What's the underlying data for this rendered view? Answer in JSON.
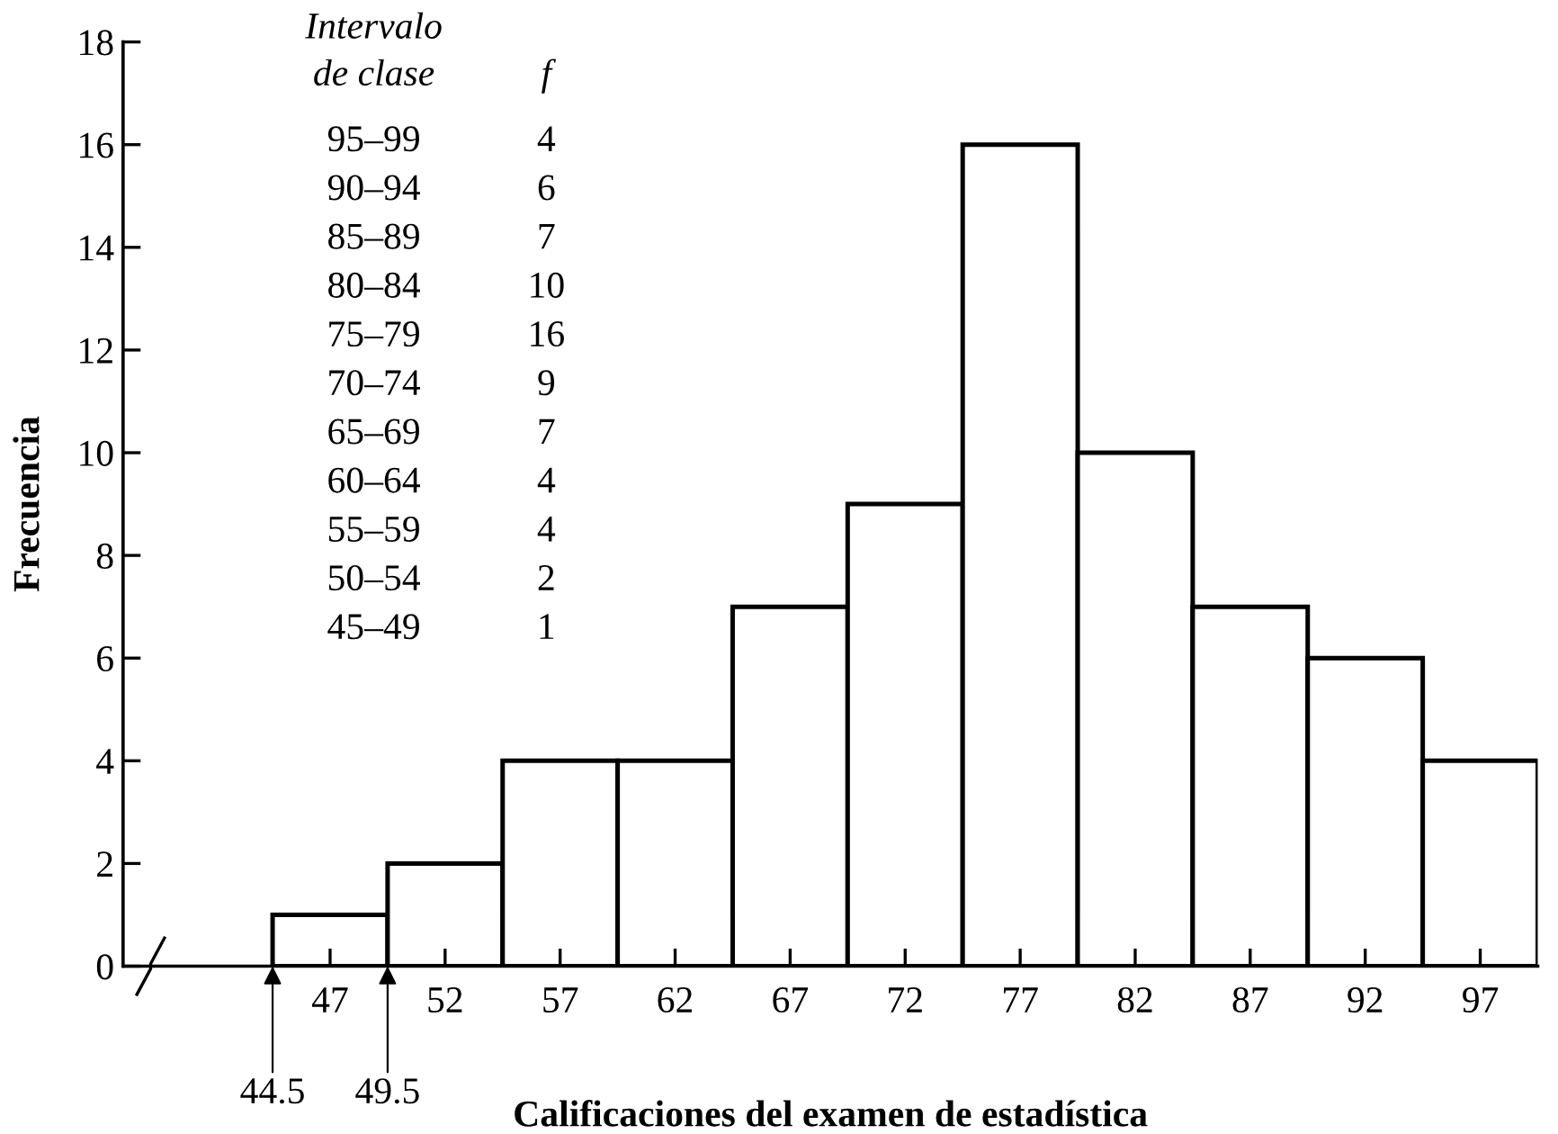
{
  "chart_data": {
    "type": "histogram",
    "xlabel": "Calificaciones del examen de estadística",
    "ylabel": "Frecuencia",
    "bins": [
      44.5,
      49.5,
      54.5,
      59.5,
      64.5,
      69.5,
      74.5,
      79.5,
      84.5,
      89.5,
      94.5,
      99.5
    ],
    "values": [
      1,
      2,
      4,
      4,
      7,
      9,
      16,
      10,
      7,
      6,
      4
    ],
    "color": "#ffffff",
    "xlim": [
      38,
      99.5
    ],
    "xticks": [
      47,
      52,
      57,
      62,
      67,
      72,
      77,
      82,
      87,
      92,
      97
    ],
    "ylim": [
      0,
      18
    ],
    "yticks": [
      0,
      2,
      4,
      6,
      8,
      10,
      12,
      14,
      16,
      18
    ],
    "grid": false,
    "annotations": [
      {
        "text": "44.5",
        "x": 44.5,
        "y": 0
      },
      {
        "text": "49.5",
        "x": 49.5,
        "y": 0
      },
      "Intervalo\nde clase",
      "f",
      "95–99",
      "4",
      "90–94",
      "6",
      "85–89",
      "7",
      "80–84",
      "10",
      "75–79",
      "16",
      "70–74",
      "9",
      "65–69",
      "7",
      "60–64",
      "4",
      "55–59",
      "4",
      "50–54",
      "2",
      "45–49",
      "1"
    ]
  }
}
